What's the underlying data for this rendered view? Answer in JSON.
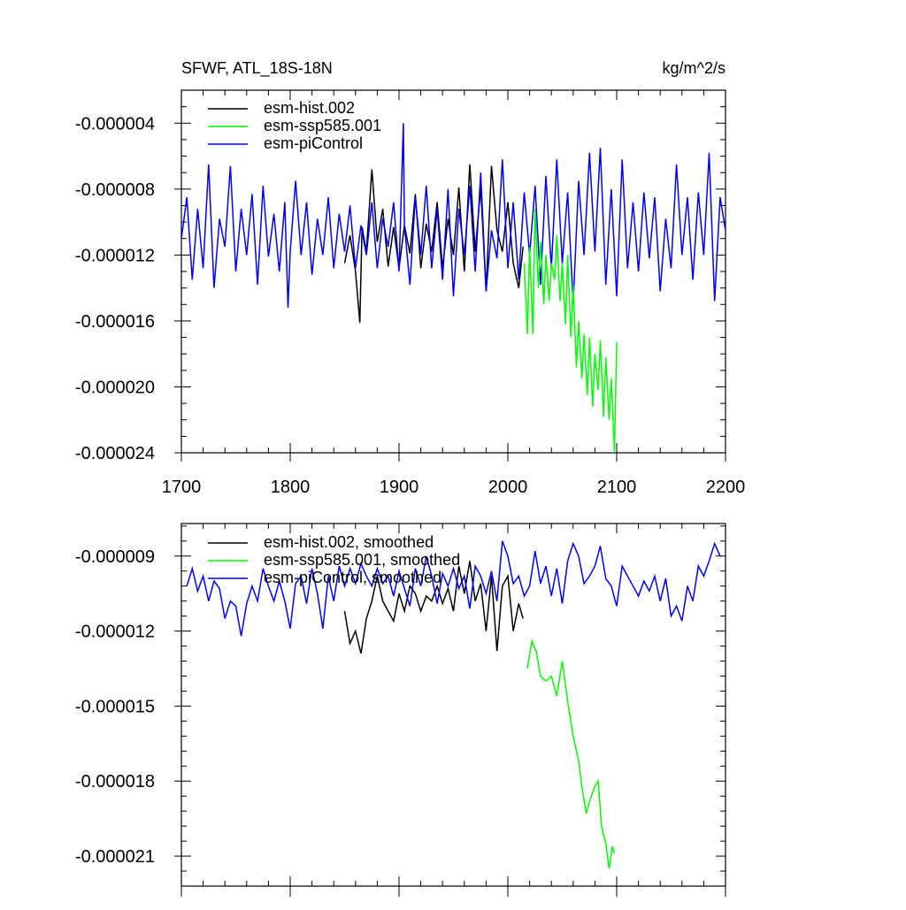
{
  "chart_data": [
    {
      "type": "line",
      "title": "SFWF, ATL_18S-18N",
      "units": "kg/m^2/s",
      "xlim": [
        1700,
        2200
      ],
      "ylim": [
        -2.4e-05,
        -2e-06
      ],
      "x_ticks": [
        1700,
        1800,
        1900,
        2000,
        2100,
        2200
      ],
      "x_tick_labels": [
        "1700",
        "1800",
        "1900",
        "2000",
        "2100",
        "2200"
      ],
      "y_ticks": [
        -4e-06,
        -8e-06,
        -1.2e-05,
        -1.6e-05,
        -2e-05,
        -2.4e-05
      ],
      "y_tick_labels": [
        "-0.000004",
        "-0.000008",
        "-0.000012",
        "-0.000016",
        "-0.000020",
        "-0.000024"
      ],
      "legend_position": "top-left",
      "series": [
        {
          "name": "esm-hist.002",
          "color": "#000000",
          "x": [
            1850,
            1855,
            1860,
            1864,
            1866,
            1870,
            1875,
            1880,
            1885,
            1890,
            1895,
            1900,
            1905,
            1910,
            1915,
            1920,
            1925,
            1930,
            1935,
            1940,
            1945,
            1950,
            1955,
            1960,
            1965,
            1970,
            1975,
            1980,
            1985,
            1990,
            1995,
            2000,
            2005,
            2010,
            2014
          ],
          "y": [
            -1.25e-05,
            -1.08e-05,
            -1.3e-05,
            -1.61e-05,
            -1.03e-05,
            -1.18e-05,
            -6.8e-06,
            -1.12e-05,
            -9.2e-06,
            -1.27e-05,
            -1.03e-05,
            -1.28e-05,
            -1.02e-05,
            -1.19e-05,
            -8.3e-06,
            -1.28e-05,
            -1.01e-05,
            -1.18e-05,
            -8.8e-06,
            -1.28e-05,
            -9.8e-06,
            -1.2e-05,
            -7.9e-06,
            -1.3e-05,
            -6.5e-06,
            -1.18e-05,
            -7.9e-06,
            -1.42e-05,
            -6.6e-06,
            -1.05e-05,
            -1.18e-05,
            -8.8e-06,
            -1.25e-05,
            -1.4e-05,
            -1.15e-05
          ]
        },
        {
          "name": "esm-ssp585.001",
          "color": "#00ff00",
          "x": [
            2015,
            2018,
            2020,
            2023,
            2025,
            2028,
            2030,
            2033,
            2035,
            2038,
            2040,
            2043,
            2045,
            2048,
            2050,
            2053,
            2055,
            2058,
            2060,
            2063,
            2065,
            2068,
            2070,
            2073,
            2075,
            2078,
            2080,
            2083,
            2085,
            2088,
            2090,
            2093,
            2095,
            2098,
            2100
          ],
          "y": [
            -1.25e-05,
            -1.68e-05,
            -1.15e-05,
            -1.68e-05,
            -9.2e-06,
            -1.4e-05,
            -1.12e-05,
            -1.5e-05,
            -1.2e-05,
            -1.48e-05,
            -1.25e-05,
            -1.35e-05,
            -1.08e-05,
            -1.48e-05,
            -1.25e-05,
            -1.62e-05,
            -1.2e-05,
            -1.7e-05,
            -1.38e-05,
            -1.88e-05,
            -1.6e-05,
            -1.95e-05,
            -1.68e-05,
            -2.05e-05,
            -1.7e-05,
            -2.12e-05,
            -1.8e-05,
            -2.02e-05,
            -1.72e-05,
            -2.18e-05,
            -1.82e-05,
            -2.2e-05,
            -1.95e-05,
            -2.4e-05,
            -1.73e-05
          ]
        },
        {
          "name": "esm-piControl",
          "color": "#0000ff",
          "x": [
            1700,
            1705,
            1710,
            1715,
            1720,
            1725,
            1730,
            1735,
            1740,
            1745,
            1750,
            1755,
            1760,
            1765,
            1770,
            1775,
            1780,
            1785,
            1790,
            1795,
            1798,
            1800,
            1805,
            1810,
            1815,
            1820,
            1825,
            1830,
            1835,
            1840,
            1845,
            1850,
            1855,
            1860,
            1865,
            1870,
            1875,
            1880,
            1885,
            1890,
            1895,
            1900,
            1904,
            1905,
            1910,
            1915,
            1920,
            1925,
            1930,
            1935,
            1940,
            1945,
            1950,
            1955,
            1960,
            1965,
            1970,
            1975,
            1980,
            1985,
            1990,
            1995,
            2000,
            2005,
            2010,
            2015,
            2020,
            2025,
            2030,
            2035,
            2040,
            2045,
            2050,
            2055,
            2060,
            2065,
            2070,
            2075,
            2080,
            2085,
            2090,
            2095,
            2100,
            2105,
            2110,
            2115,
            2120,
            2125,
            2130,
            2135,
            2140,
            2145,
            2150,
            2155,
            2160,
            2165,
            2170,
            2175,
            2180,
            2185,
            2190,
            2195,
            2200
          ],
          "y": [
            -1.1e-05,
            -8.5e-06,
            -1.35e-05,
            -9.2e-06,
            -1.28e-05,
            -6.5e-06,
            -1.4e-05,
            -9.8e-06,
            -1.15e-05,
            -6.6e-06,
            -1.3e-05,
            -9.2e-06,
            -1.2e-05,
            -8.3e-06,
            -1.38e-05,
            -7.8e-06,
            -1.21e-05,
            -9.5e-06,
            -1.3e-05,
            -8.8e-06,
            -1.52e-05,
            -1.18e-05,
            -7.5e-06,
            -1.2e-05,
            -8.8e-06,
            -1.32e-05,
            -9.8e-06,
            -1.2e-05,
            -8.5e-06,
            -1.28e-05,
            -9.5e-06,
            -1.18e-05,
            -9e-06,
            -1.28e-05,
            -1.02e-05,
            -1.2e-05,
            -8.8e-06,
            -1.28e-05,
            -9.8e-06,
            -1.15e-05,
            -8.8e-06,
            -1.3e-05,
            -4e-06,
            -1.02e-05,
            -1.38e-05,
            -8.5e-06,
            -1.2e-05,
            -7.8e-06,
            -1.28e-05,
            -9.2e-06,
            -1.35e-05,
            -8e-06,
            -1.45e-05,
            -9.2e-06,
            -1.2e-05,
            -7.8e-06,
            -1.3e-05,
            -7e-06,
            -1.42e-05,
            -1.05e-05,
            -1.22e-05,
            -6.2e-06,
            -1.28e-05,
            -8.8e-06,
            -1.35e-05,
            -8.2e-06,
            -1.2e-05,
            -7.8e-06,
            -1.38e-05,
            -7.2e-06,
            -1.28e-05,
            -6.2e-06,
            -1.25e-05,
            -8.2e-06,
            -1.5e-05,
            -7.5e-06,
            -1.2e-05,
            -5.8e-06,
            -1.18e-05,
            -5.5e-06,
            -1.38e-05,
            -8e-06,
            -1.45e-05,
            -6.2e-06,
            -1.28e-05,
            -8.8e-06,
            -1.3e-05,
            -8.2e-06,
            -1.22e-05,
            -8.5e-06,
            -1.42e-05,
            -9.8e-06,
            -1.28e-05,
            -6.5e-06,
            -1.2e-05,
            -8.5e-06,
            -1.35e-05,
            -8.2e-06,
            -1.2e-05,
            -5.8e-06,
            -1.48e-05,
            -8.5e-06,
            -1.05e-05
          ]
        }
      ]
    },
    {
      "type": "line",
      "title": "",
      "xlim": [
        1700,
        2200
      ],
      "ylim": [
        -2.22e-05,
        -7.7e-06
      ],
      "x_ticks": [
        1700,
        1800,
        1900,
        2000,
        2100,
        2200
      ],
      "y_ticks": [
        -9e-06,
        -1.2e-05,
        -1.5e-05,
        -1.8e-05,
        -2.1e-05
      ],
      "y_tick_labels": [
        "-0.000009",
        "-0.000012",
        "-0.000015",
        "-0.000018",
        "-0.000021"
      ],
      "legend_position": "top-left",
      "series": [
        {
          "name": "esm-hist.002, smoothed",
          "color": "#000000",
          "x": [
            1850,
            1855,
            1860,
            1865,
            1870,
            1875,
            1880,
            1885,
            1890,
            1895,
            1900,
            1905,
            1910,
            1915,
            1920,
            1925,
            1930,
            1935,
            1940,
            1945,
            1950,
            1955,
            1960,
            1965,
            1970,
            1975,
            1980,
            1985,
            1990,
            1995,
            2000,
            2005,
            2010,
            2014
          ],
          "y": [
            -1.12e-05,
            -1.25e-05,
            -1.2e-05,
            -1.29e-05,
            -1.15e-05,
            -1.08e-05,
            -9.8e-06,
            -1.08e-05,
            -1.12e-05,
            -1.16e-05,
            -1.05e-05,
            -1.12e-05,
            -1.02e-05,
            -1.05e-05,
            -1.12e-05,
            -1.06e-05,
            -1.08e-05,
            -1.02e-05,
            -1.09e-05,
            -1.03e-05,
            -1.12e-05,
            -9.4e-06,
            -1.05e-05,
            -9.2e-06,
            -1.08e-05,
            -1.01e-05,
            -1.2e-05,
            -9.8e-06,
            -1.28e-05,
            -1.02e-05,
            -9.8e-06,
            -1.2e-05,
            -1.09e-05,
            -1.15e-05
          ]
        },
        {
          "name": "esm-ssp585.001, smoothed",
          "color": "#00ff00",
          "x": [
            2018,
            2022,
            2026,
            2030,
            2035,
            2040,
            2045,
            2050,
            2055,
            2060,
            2065,
            2068,
            2072,
            2075,
            2080,
            2083,
            2086,
            2090,
            2093,
            2096,
            2098
          ],
          "y": [
            -1.35e-05,
            -1.24e-05,
            -1.28e-05,
            -1.38e-05,
            -1.4e-05,
            -1.38e-05,
            -1.46e-05,
            -1.32e-05,
            -1.48e-05,
            -1.62e-05,
            -1.72e-05,
            -1.82e-05,
            -1.93e-05,
            -1.88e-05,
            -1.82e-05,
            -1.8e-05,
            -1.98e-05,
            -2.05e-05,
            -2.15e-05,
            -2.06e-05,
            -2.09e-05
          ]
        },
        {
          "name": "esm-piControl, smoothed",
          "color": "#0000ff",
          "x": [
            1705,
            1710,
            1715,
            1720,
            1725,
            1730,
            1735,
            1740,
            1745,
            1750,
            1755,
            1760,
            1765,
            1770,
            1775,
            1780,
            1785,
            1790,
            1795,
            1800,
            1805,
            1810,
            1815,
            1820,
            1825,
            1830,
            1835,
            1840,
            1845,
            1850,
            1855,
            1860,
            1865,
            1870,
            1875,
            1880,
            1885,
            1890,
            1895,
            1900,
            1905,
            1910,
            1915,
            1920,
            1925,
            1930,
            1935,
            1940,
            1945,
            1950,
            1955,
            1960,
            1965,
            1970,
            1975,
            1980,
            1985,
            1990,
            1995,
            2000,
            2005,
            2010,
            2015,
            2020,
            2025,
            2030,
            2035,
            2040,
            2045,
            2050,
            2055,
            2060,
            2065,
            2070,
            2075,
            2080,
            2085,
            2090,
            2095,
            2100,
            2105,
            2110,
            2115,
            2120,
            2125,
            2130,
            2135,
            2140,
            2145,
            2150,
            2155,
            2160,
            2165,
            2170,
            2175,
            2180,
            2185,
            2190,
            2195
          ],
          "y": [
            -1.02e-05,
            -9.5e-06,
            -1.04e-05,
            -9.8e-06,
            -1.08e-05,
            -1e-05,
            -1.03e-05,
            -1.15e-05,
            -1.08e-05,
            -1.1e-05,
            -1.22e-05,
            -1.09e-05,
            -1.02e-05,
            -1.08e-05,
            -9.5e-06,
            -1.02e-05,
            -1.08e-05,
            -1e-05,
            -1.08e-05,
            -1.19e-05,
            -1.01e-05,
            -9.8e-06,
            -1.09e-05,
            -9.5e-06,
            -1.05e-05,
            -1.19e-05,
            -9.8e-06,
            -1.08e-05,
            -9.4e-06,
            -1.02e-05,
            -9.5e-06,
            -1.01e-05,
            -9.3e-06,
            -9.8e-06,
            -1.02e-05,
            -9.5e-06,
            -1.01e-05,
            -9.8e-06,
            -1.06e-05,
            -9.6e-06,
            -1.03e-05,
            -1.1e-05,
            -9.5e-06,
            -1.02e-05,
            -9e-06,
            -9.8e-06,
            -1.09e-05,
            -9.7e-06,
            -1.02e-05,
            -9.5e-06,
            -1.03e-05,
            -9.8e-06,
            -1.11e-05,
            -9.4e-06,
            -9.8e-06,
            -1.05e-05,
            -9.6e-06,
            -1.08e-05,
            -8.4e-06,
            -9e-06,
            -1.01e-05,
            -9.8e-06,
            -1.06e-05,
            -1.02e-05,
            -8.8e-06,
            -1.01e-05,
            -9.4e-06,
            -1.06e-05,
            -9.5e-06,
            -1.09e-05,
            -9.2e-06,
            -8.5e-06,
            -9e-06,
            -1.01e-05,
            -9.8e-06,
            -9.4e-06,
            -8.6e-06,
            -9.9e-06,
            -1.02e-05,
            -1.1e-05,
            -9.4e-06,
            -9.8e-06,
            -1.02e-05,
            -1.06e-05,
            -1e-05,
            -1.04e-05,
            -9.8e-06,
            -1.08e-05,
            -9.9e-06,
            -1.14e-05,
            -1.1e-05,
            -1.16e-05,
            -1.02e-05,
            -1.08e-05,
            -9.4e-06,
            -9.8e-06,
            -9.2e-06,
            -8.5e-06,
            -9e-06
          ]
        }
      ]
    }
  ]
}
